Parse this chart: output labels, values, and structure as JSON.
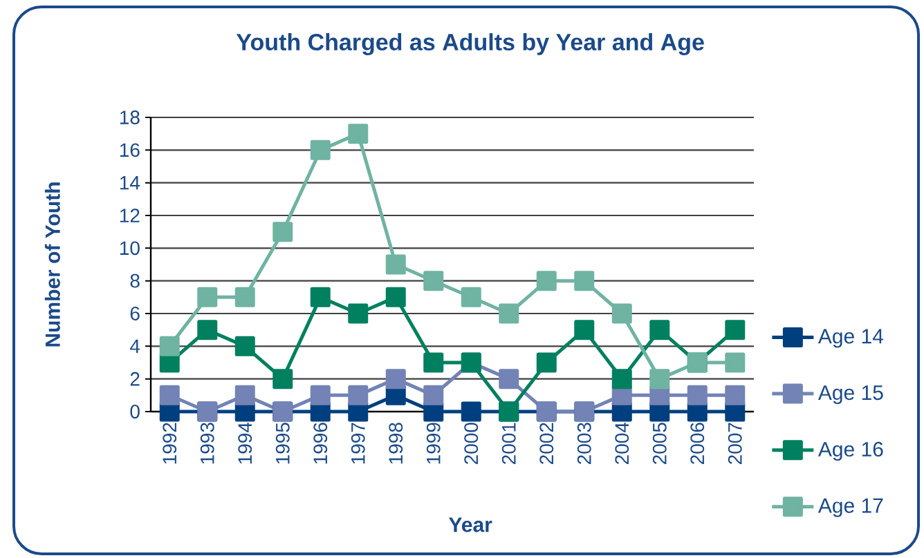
{
  "chart_data": {
    "type": "line",
    "title": "Youth Charged as Adults by Year and Age",
    "xlabel": "Year",
    "ylabel": "Number of Youth",
    "categories": [
      "1992",
      "1993",
      "1994",
      "1995",
      "1996",
      "1997",
      "1998",
      "1999",
      "2000",
      "2001",
      "2002",
      "2003",
      "2004",
      "2005",
      "2006",
      "2007"
    ],
    "series": [
      {
        "name": "Age 14",
        "color": "#003f7f",
        "values": [
          0,
          0,
          0,
          0,
          0,
          0,
          1,
          0,
          0,
          0,
          0,
          0,
          0,
          0,
          0,
          0
        ]
      },
      {
        "name": "Age 15",
        "color": "#7383b5",
        "values": [
          1,
          0,
          1,
          0,
          1,
          1,
          2,
          1,
          3,
          2,
          0,
          0,
          1,
          1,
          1,
          1
        ]
      },
      {
        "name": "Age 16",
        "color": "#00805f",
        "values": [
          3,
          5,
          4,
          2,
          7,
          6,
          7,
          3,
          3,
          0,
          3,
          5,
          2,
          5,
          3,
          5
        ]
      },
      {
        "name": "Age 17",
        "color": "#6fb3a3",
        "values": [
          4,
          7,
          7,
          11,
          16,
          17,
          9,
          8,
          7,
          6,
          8,
          8,
          6,
          2,
          3,
          3
        ]
      }
    ],
    "ylim": [
      0,
      18
    ],
    "yticks": [
      0,
      2,
      4,
      6,
      8,
      10,
      12,
      14,
      16,
      18
    ],
    "grid": "y",
    "legend": "right",
    "marker": "square",
    "line_style": "solid"
  }
}
